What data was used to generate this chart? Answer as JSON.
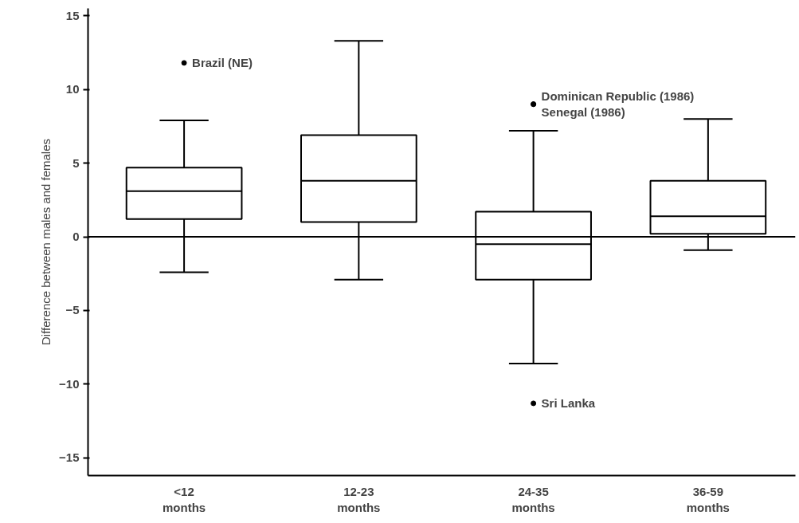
{
  "chart_data": {
    "type": "box",
    "ylabel": "Difference between males and females",
    "categories": [
      "<12\nmonths",
      "12-23\nmonths",
      "24-35\nmonths",
      "36-59\nmonths"
    ],
    "boxes": [
      {
        "low": -2.4,
        "q1": 1.2,
        "median": 3.1,
        "q3": 4.7,
        "high": 7.9,
        "outliers": [
          11.8
        ]
      },
      {
        "low": -2.9,
        "q1": 1.0,
        "median": 3.8,
        "q3": 6.9,
        "high": 13.3
      },
      {
        "low": -8.6,
        "q1": -2.9,
        "median": -0.5,
        "q3": 1.7,
        "high": 7.2,
        "outliers": [
          9.0,
          9.0,
          -11.3
        ]
      },
      {
        "low": -0.9,
        "q1": 0.2,
        "median": 1.4,
        "q3": 3.8,
        "high": 8.0
      }
    ],
    "ylim": [
      -16.2,
      15.5
    ],
    "yticks": [
      -15,
      -10,
      -5,
      0,
      5,
      10,
      15
    ],
    "grid": false,
    "ref_lines": [
      {
        "axis": "y",
        "value": 0
      }
    ],
    "annotations": [
      "Brazil (NE)",
      "Dominican Republic (1986)",
      "Senegal (1986)",
      "Sri Lanka"
    ]
  }
}
